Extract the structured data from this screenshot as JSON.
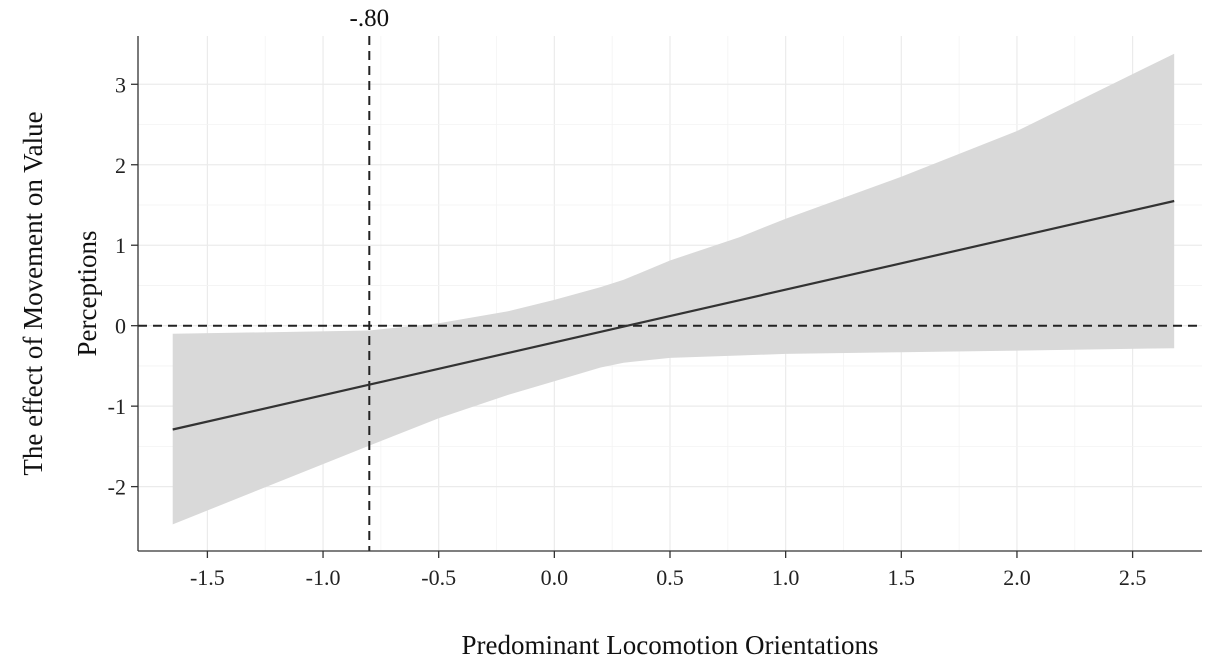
{
  "chart_data": {
    "type": "line",
    "title": "",
    "xlabel": "Predominant Locomotion Orientations",
    "ylabel_line1": "The effect of Movement on Value",
    "ylabel_line2": "Perceptions",
    "xlim": [
      -1.8,
      2.8
    ],
    "ylim": [
      -2.8,
      3.6
    ],
    "x_ticks": [
      -1.5,
      -1.0,
      -0.5,
      0.0,
      0.5,
      1.0,
      1.5,
      2.0,
      2.5
    ],
    "x_tick_labels": [
      "-1.5",
      "-1.0",
      "-0.5",
      "0.0",
      "0.5",
      "1.0",
      "1.5",
      "2.0",
      "2.5"
    ],
    "y_ticks": [
      -2,
      -1,
      0,
      1,
      2,
      3
    ],
    "y_tick_labels": [
      "-2",
      "-1",
      "0",
      "1",
      "2",
      "3"
    ],
    "grid": true,
    "series": [
      {
        "x": [
          -1.65,
          2.68
        ],
        "y": [
          -1.29,
          1.55
        ],
        "color": "#333333"
      }
    ],
    "confidence_band": {
      "color": "#d9d9d9",
      "x": [
        -1.65,
        -1.2,
        -0.8,
        -0.5,
        -0.2,
        0.0,
        0.2,
        0.3,
        0.5,
        0.8,
        1.0,
        1.5,
        2.0,
        2.68
      ],
      "lower": [
        -2.47,
        -1.95,
        -1.49,
        -1.15,
        -0.86,
        -0.69,
        -0.52,
        -0.46,
        -0.4,
        -0.37,
        -0.35,
        -0.33,
        -0.31,
        -0.28
      ],
      "upper": [
        -0.1,
        -0.08,
        -0.06,
        0.03,
        0.18,
        0.32,
        0.48,
        0.57,
        0.81,
        1.1,
        1.33,
        1.85,
        2.42,
        3.38
      ]
    },
    "reference_lines": {
      "vertical_x": -0.8,
      "horizontal_y": 0,
      "style": "dashed",
      "color": "#222222"
    },
    "annotation": {
      "text": "-.80",
      "x": -0.8
    }
  }
}
